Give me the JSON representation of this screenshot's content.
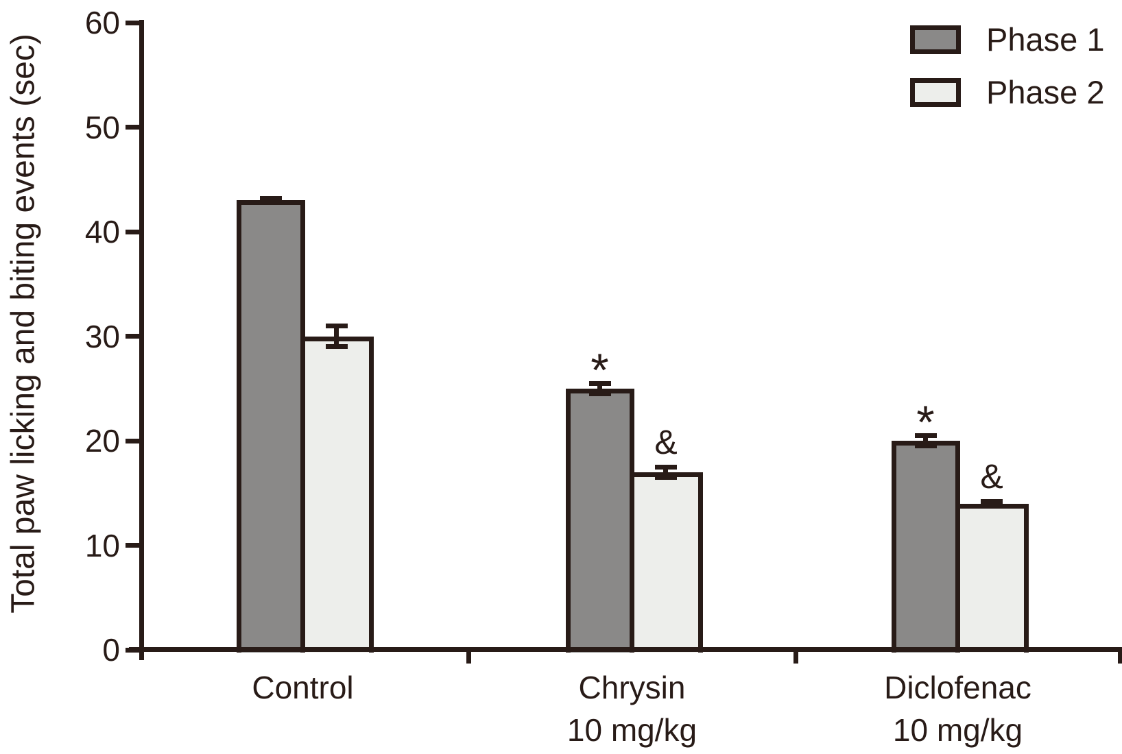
{
  "figure": {
    "background_color": "#ffffff",
    "ink_color": "#281b17"
  },
  "chart_data": {
    "type": "bar",
    "title": "",
    "ylabel": "Total paw licking and biting events (sec)",
    "xlabel": "",
    "ylim": [
      0,
      60
    ],
    "yticks": [
      0,
      10,
      20,
      30,
      40,
      50,
      60
    ],
    "grid": false,
    "legend_position": "top-right",
    "categories": [
      "Control",
      "Chrysin\n10 mg/kg",
      "Diclofenac\n10 mg/kg"
    ],
    "series": [
      {
        "name": "Phase 1",
        "color": "#8a8988",
        "values": [
          43,
          25,
          20
        ],
        "errors": [
          0.2,
          0.5,
          0.5
        ],
        "annotations": [
          "",
          "*",
          "*"
        ]
      },
      {
        "name": "Phase 2",
        "color": "#edeeeb",
        "values": [
          30,
          17,
          14
        ],
        "errors": [
          1.0,
          0.5,
          0.2
        ],
        "annotations": [
          "",
          "&",
          "&"
        ]
      }
    ]
  }
}
